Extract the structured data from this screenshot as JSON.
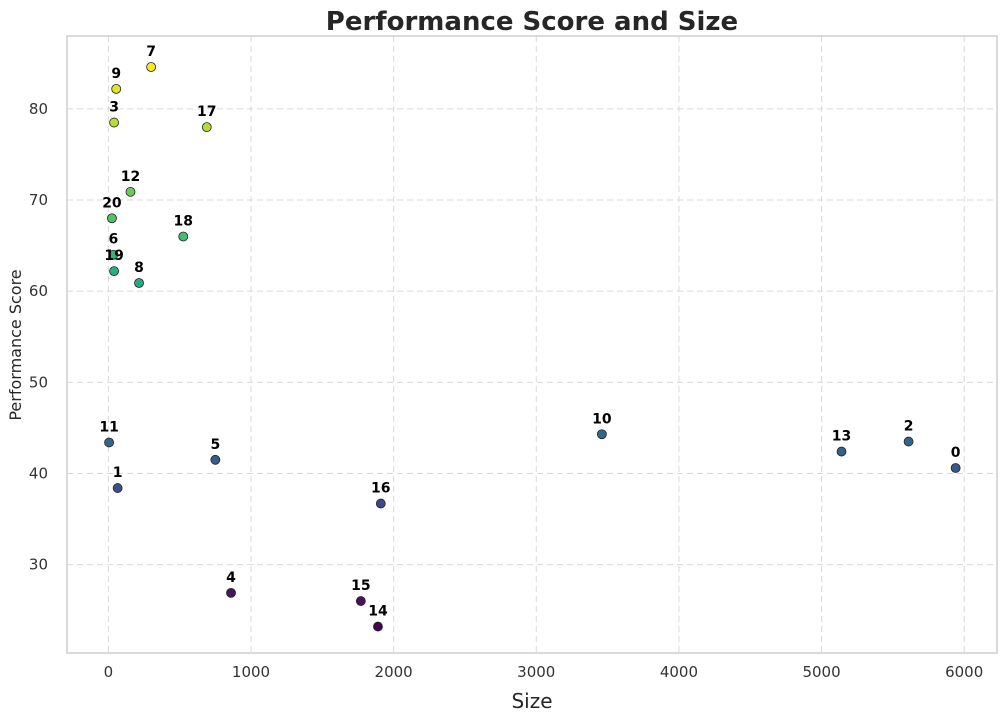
{
  "chart_data": {
    "type": "scatter",
    "title": "Performance Score and Size",
    "xlabel": "Size",
    "ylabel": "Performance Score",
    "xlim": [
      -290,
      6230
    ],
    "ylim": [
      20.3,
      88.0
    ],
    "xticks": [
      0,
      1000,
      2000,
      3000,
      4000,
      5000,
      6000
    ],
    "yticks": [
      30,
      40,
      50,
      60,
      70,
      80
    ],
    "grid": true,
    "colormap": "viridis",
    "points": [
      {
        "label": "0",
        "x": 5940,
        "y": 40.6
      },
      {
        "label": "1",
        "x": 65,
        "y": 38.4
      },
      {
        "label": "2",
        "x": 5610,
        "y": 43.5
      },
      {
        "label": "3",
        "x": 40,
        "y": 78.5
      },
      {
        "label": "4",
        "x": 860,
        "y": 26.9
      },
      {
        "label": "5",
        "x": 750,
        "y": 41.5
      },
      {
        "label": "6",
        "x": 35,
        "y": 64.0
      },
      {
        "label": "7",
        "x": 300,
        "y": 84.6
      },
      {
        "label": "8",
        "x": 215,
        "y": 60.9
      },
      {
        "label": "9",
        "x": 55,
        "y": 82.2
      },
      {
        "label": "10",
        "x": 3460,
        "y": 44.3
      },
      {
        "label": "11",
        "x": 5,
        "y": 43.4
      },
      {
        "label": "12",
        "x": 155,
        "y": 70.9
      },
      {
        "label": "13",
        "x": 5140,
        "y": 42.4
      },
      {
        "label": "14",
        "x": 1890,
        "y": 23.2
      },
      {
        "label": "15",
        "x": 1770,
        "y": 26.0
      },
      {
        "label": "16",
        "x": 1910,
        "y": 36.7
      },
      {
        "label": "17",
        "x": 690,
        "y": 78.0
      },
      {
        "label": "18",
        "x": 525,
        "y": 66.0
      },
      {
        "label": "19",
        "x": 40,
        "y": 62.2
      },
      {
        "label": "20",
        "x": 25,
        "y": 68.0
      }
    ]
  }
}
